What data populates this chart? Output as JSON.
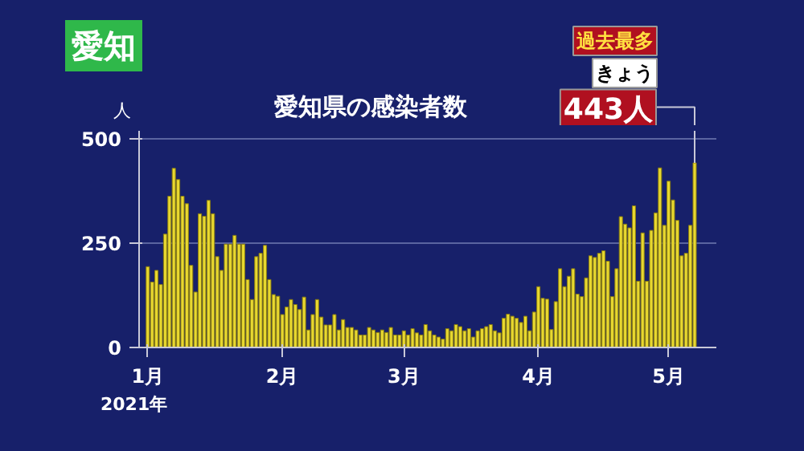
{
  "chart_data": {
    "type": "bar",
    "title": "愛知県の感染者数",
    "ylabel": "人",
    "x": [
      "2021-01-01",
      "2021-01-02",
      "2021-01-03",
      "2021-01-04",
      "2021-01-05",
      "2021-01-06",
      "2021-01-07",
      "2021-01-08",
      "2021-01-09",
      "2021-01-10",
      "2021-01-11",
      "2021-01-12",
      "2021-01-13",
      "2021-01-14",
      "2021-01-15",
      "2021-01-16",
      "2021-01-17",
      "2021-01-18",
      "2021-01-19",
      "2021-01-20",
      "2021-01-21",
      "2021-01-22",
      "2021-01-23",
      "2021-01-24",
      "2021-01-25",
      "2021-01-26",
      "2021-01-27",
      "2021-01-28",
      "2021-01-29",
      "2021-01-30",
      "2021-01-31",
      "2021-02-01",
      "2021-02-02",
      "2021-02-03",
      "2021-02-04",
      "2021-02-05",
      "2021-02-06",
      "2021-02-07",
      "2021-02-08",
      "2021-02-09",
      "2021-02-10",
      "2021-02-11",
      "2021-02-12",
      "2021-02-13",
      "2021-02-14",
      "2021-02-15",
      "2021-02-16",
      "2021-02-17",
      "2021-02-18",
      "2021-02-19",
      "2021-02-20",
      "2021-02-21",
      "2021-02-22",
      "2021-02-23",
      "2021-02-24",
      "2021-02-25",
      "2021-02-26",
      "2021-02-27",
      "2021-02-28",
      "2021-03-01",
      "2021-03-02",
      "2021-03-03",
      "2021-03-04",
      "2021-03-05",
      "2021-03-06",
      "2021-03-07",
      "2021-03-08",
      "2021-03-09",
      "2021-03-10",
      "2021-03-11",
      "2021-03-12",
      "2021-03-13",
      "2021-03-14",
      "2021-03-15",
      "2021-03-16",
      "2021-03-17",
      "2021-03-18",
      "2021-03-19",
      "2021-03-20",
      "2021-03-21",
      "2021-03-22",
      "2021-03-23",
      "2021-03-24",
      "2021-03-25",
      "2021-03-26",
      "2021-03-27",
      "2021-03-28",
      "2021-03-29",
      "2021-03-30",
      "2021-03-31",
      "2021-04-01",
      "2021-04-02",
      "2021-04-03",
      "2021-04-04",
      "2021-04-05",
      "2021-04-06",
      "2021-04-07",
      "2021-04-08",
      "2021-04-09",
      "2021-04-10",
      "2021-04-11",
      "2021-04-12",
      "2021-04-13",
      "2021-04-14",
      "2021-04-15",
      "2021-04-16",
      "2021-04-17",
      "2021-04-18",
      "2021-04-19",
      "2021-04-20",
      "2021-04-21",
      "2021-04-22",
      "2021-04-23",
      "2021-04-24",
      "2021-04-25",
      "2021-04-26",
      "2021-04-27",
      "2021-04-28",
      "2021-04-29",
      "2021-04-30",
      "2021-05-01",
      "2021-05-02",
      "2021-05-03",
      "2021-05-04",
      "2021-05-05",
      "2021-05-06",
      "2021-05-07"
    ],
    "values": [
      194,
      157,
      185,
      151,
      272,
      363,
      430,
      403,
      363,
      345,
      197,
      133,
      321,
      315,
      353,
      321,
      218,
      185,
      248,
      248,
      269,
      248,
      248,
      163,
      115,
      218,
      226,
      245,
      163,
      127,
      123,
      79,
      97,
      115,
      103,
      91,
      121,
      42,
      79,
      115,
      73,
      54,
      54,
      79,
      42,
      67,
      48,
      48,
      42,
      30,
      30,
      48,
      42,
      36,
      42,
      36,
      48,
      30,
      30,
      40,
      30,
      45,
      35,
      30,
      55,
      40,
      30,
      25,
      20,
      45,
      40,
      55,
      50,
      40,
      45,
      25,
      40,
      45,
      50,
      55,
      40,
      35,
      70,
      80,
      75,
      70,
      60,
      75,
      40,
      85,
      146,
      118,
      116,
      43,
      110,
      189,
      146,
      171,
      189,
      128,
      122,
      167,
      220,
      216,
      226,
      232,
      207,
      122,
      189,
      314,
      296,
      287,
      340,
      159,
      275,
      159,
      281,
      323,
      431,
      293,
      399,
      354,
      305,
      220,
      226,
      293,
      443
    ],
    "color": "#e8d830",
    "xlim": [
      "2020-12-30",
      "2021-05-12"
    ],
    "xticks": [
      {
        "value": "2021-01-01",
        "label": "1月"
      },
      {
        "value": "2021-02-01",
        "label": "2月"
      },
      {
        "value": "2021-03-01",
        "label": "3月"
      },
      {
        "value": "2021-04-01",
        "label": "4月"
      },
      {
        "value": "2021-05-01",
        "label": "5月"
      }
    ],
    "ylim": [
      0,
      520
    ],
    "yticks": [
      0,
      250,
      500
    ],
    "grid": "y",
    "annotations": [
      "愛知",
      "2021年",
      "過去最多",
      "きょう",
      {
        "text": "443人",
        "x": "2021-05-07",
        "y": 443
      }
    ]
  }
}
